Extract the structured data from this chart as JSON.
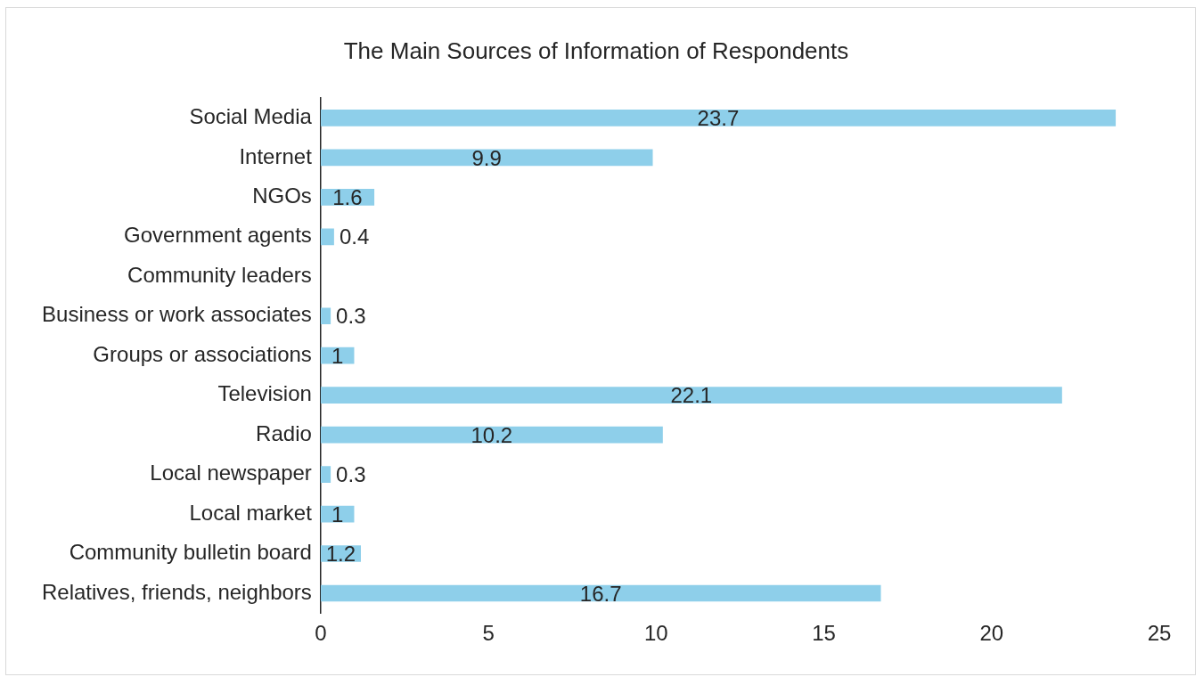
{
  "chart_data": {
    "type": "bar",
    "orientation": "horizontal",
    "title": "The Main Sources of Information of Respondents",
    "categories": [
      "Social Media",
      "Internet",
      "NGOs",
      "Government agents",
      "Community leaders",
      "Business or work associates",
      "Groups or associations",
      "Television",
      "Radio",
      "Local newspaper",
      "Local market",
      "Community bulletin board",
      "Relatives, friends, neighbors"
    ],
    "values": [
      23.7,
      9.9,
      1.6,
      0.4,
      null,
      0.3,
      1,
      22.1,
      10.2,
      0.3,
      1,
      1.2,
      16.7
    ],
    "value_labels": [
      "23.7",
      "9.9",
      "1.6",
      "0.4",
      null,
      "0.3",
      "1",
      "22.1",
      "10.2",
      "0.3",
      "1",
      "1.2",
      "16.7"
    ],
    "color": "#8ecfea",
    "xlim": [
      0,
      25
    ],
    "xticks": [
      0,
      5,
      10,
      15,
      20,
      25
    ],
    "grid": false,
    "legend": false
  }
}
